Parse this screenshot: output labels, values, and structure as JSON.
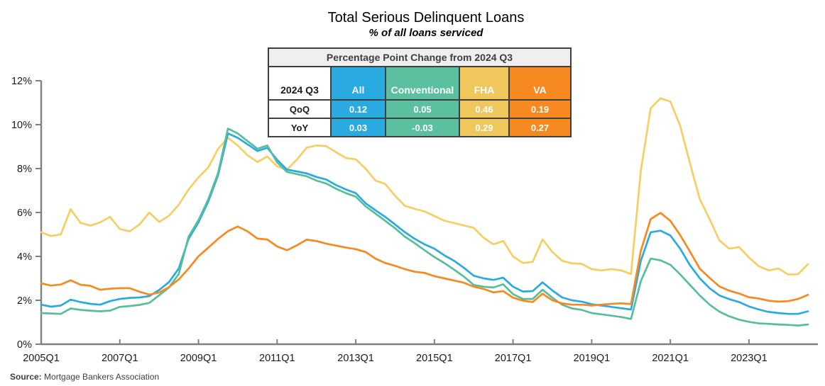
{
  "header": {
    "title": "Total Serious Delinquent Loans",
    "subtitle": "% of all loans serviced"
  },
  "footer": {
    "source_label": "Source:",
    "source_text": "Mortgage Bankers Association"
  },
  "table": {
    "title": "Percentage Point Change from 2024 Q3",
    "corner_label": "2024 Q3",
    "columns": [
      {
        "label": "All",
        "color": "#29abe2"
      },
      {
        "label": "Conventional",
        "color": "#5bc0a0"
      },
      {
        "label": "FHA",
        "color": "#efc75d"
      },
      {
        "label": "VA",
        "color": "#f6891f"
      }
    ],
    "rows": [
      {
        "label": "QoQ",
        "values": [
          "0.12",
          "0.05",
          "0.46",
          "0.19"
        ]
      },
      {
        "label": "YoY",
        "values": [
          "0.03",
          "-0.03",
          "0.29",
          "0.27"
        ]
      }
    ]
  },
  "chart_data": {
    "type": "line",
    "title": "Total Serious Delinquent Loans",
    "subtitle": "% of all loans serviced",
    "xlabel": "",
    "ylabel": "% of all loans serviced",
    "x_start": "2005Q1",
    "x_end": "2024Q3",
    "frequency": "quarterly",
    "ylim": [
      0,
      12
    ],
    "grid": false,
    "legend_position": "table-overlay",
    "axis_color": "#808080",
    "tick_label_color": "#1a1a1a",
    "y_tick_values": [
      0,
      2,
      4,
      6,
      8,
      10,
      12
    ],
    "y_tick_labels": [
      "0%",
      "2%",
      "4%",
      "6%",
      "8%",
      "10%",
      "12%"
    ],
    "x_ticks": [
      {
        "index": 0,
        "label": "2005Q1"
      },
      {
        "index": 8,
        "label": "2007Q1"
      },
      {
        "index": 16,
        "label": "2009Q1"
      },
      {
        "index": 24,
        "label": "2011Q1"
      },
      {
        "index": 32,
        "label": "2013Q1"
      },
      {
        "index": 40,
        "label": "2015Q1"
      },
      {
        "index": 48,
        "label": "2017Q1"
      },
      {
        "index": 56,
        "label": "2019Q1"
      },
      {
        "index": 64,
        "label": "2021Q1"
      },
      {
        "index": 72,
        "label": "2023Q1"
      }
    ],
    "series": [
      {
        "name": "FHA",
        "color": "#f6ce63",
        "values": [
          5.1,
          4.93,
          5.0,
          6.15,
          5.53,
          5.4,
          5.55,
          5.8,
          5.25,
          5.14,
          5.45,
          6.0,
          5.57,
          5.85,
          6.35,
          7.05,
          7.6,
          8.05,
          8.9,
          9.4,
          9.05,
          8.6,
          8.3,
          8.55,
          8.1,
          7.95,
          8.4,
          8.95,
          9.05,
          9.02,
          8.75,
          8.48,
          8.42,
          8.0,
          7.45,
          7.3,
          6.76,
          6.3,
          6.16,
          6.05,
          5.84,
          5.63,
          5.52,
          5.41,
          5.3,
          4.85,
          4.55,
          4.7,
          4.0,
          3.7,
          3.75,
          4.77,
          4.2,
          3.8,
          3.68,
          3.66,
          3.42,
          3.36,
          3.42,
          3.36,
          3.2,
          7.9,
          10.75,
          11.2,
          11.05,
          9.95,
          8.25,
          6.6,
          5.7,
          4.72,
          4.35,
          4.42,
          3.95,
          3.55,
          3.36,
          3.45,
          3.17,
          3.19,
          3.65
        ]
      },
      {
        "name": "All",
        "color": "#29abe2",
        "values": [
          1.8,
          1.71,
          1.76,
          2.03,
          1.92,
          1.84,
          1.8,
          1.96,
          2.06,
          2.11,
          2.13,
          2.19,
          2.47,
          2.83,
          3.45,
          4.8,
          5.55,
          6.5,
          7.7,
          9.6,
          9.4,
          9.1,
          8.8,
          8.95,
          8.4,
          7.95,
          7.87,
          7.78,
          7.62,
          7.5,
          7.25,
          7.05,
          6.88,
          6.42,
          6.1,
          5.8,
          5.45,
          5.1,
          4.8,
          4.55,
          4.35,
          4.05,
          3.8,
          3.48,
          3.12,
          3.0,
          2.93,
          3.03,
          2.62,
          2.4,
          2.42,
          2.82,
          2.45,
          2.13,
          2.0,
          1.94,
          1.82,
          1.76,
          1.7,
          1.64,
          1.58,
          3.8,
          5.1,
          5.17,
          4.95,
          4.35,
          3.6,
          3.0,
          2.55,
          2.22,
          2.05,
          1.92,
          1.72,
          1.58,
          1.47,
          1.42,
          1.38,
          1.38,
          1.5
        ]
      },
      {
        "name": "Conventional",
        "color": "#56be9d",
        "values": [
          1.42,
          1.4,
          1.38,
          1.63,
          1.56,
          1.53,
          1.5,
          1.53,
          1.7,
          1.74,
          1.79,
          1.88,
          2.23,
          2.58,
          3.2,
          4.9,
          5.65,
          6.6,
          7.8,
          9.82,
          9.6,
          9.25,
          8.9,
          9.05,
          8.28,
          7.85,
          7.75,
          7.65,
          7.45,
          7.32,
          7.08,
          6.88,
          6.72,
          6.28,
          5.95,
          5.62,
          5.28,
          4.9,
          4.6,
          4.28,
          3.97,
          3.7,
          3.4,
          3.08,
          2.7,
          2.62,
          2.58,
          2.73,
          2.28,
          2.06,
          2.06,
          2.48,
          2.12,
          1.8,
          1.63,
          1.56,
          1.42,
          1.36,
          1.3,
          1.24,
          1.15,
          2.87,
          3.9,
          3.82,
          3.62,
          3.18,
          2.7,
          2.22,
          1.8,
          1.48,
          1.27,
          1.12,
          1.02,
          0.95,
          0.93,
          0.9,
          0.88,
          0.85,
          0.9
        ]
      },
      {
        "name": "VA",
        "color": "#f6891f",
        "values": [
          2.77,
          2.67,
          2.72,
          2.91,
          2.71,
          2.66,
          2.48,
          2.53,
          2.55,
          2.55,
          2.39,
          2.26,
          2.35,
          2.6,
          2.95,
          3.45,
          4.0,
          4.4,
          4.8,
          5.15,
          5.36,
          5.14,
          4.81,
          4.77,
          4.45,
          4.28,
          4.5,
          4.76,
          4.7,
          4.58,
          4.49,
          4.4,
          4.33,
          4.2,
          3.9,
          3.7,
          3.57,
          3.42,
          3.3,
          3.25,
          3.1,
          3.0,
          2.9,
          2.8,
          2.62,
          2.52,
          2.36,
          2.42,
          2.12,
          1.98,
          1.92,
          2.3,
          2.0,
          1.86,
          1.8,
          1.8,
          1.76,
          1.8,
          1.84,
          1.86,
          1.83,
          4.25,
          5.7,
          5.98,
          5.62,
          4.97,
          4.22,
          3.44,
          3.02,
          2.63,
          2.44,
          2.31,
          2.14,
          2.08,
          1.98,
          1.94,
          1.96,
          2.06,
          2.25
        ]
      }
    ]
  }
}
